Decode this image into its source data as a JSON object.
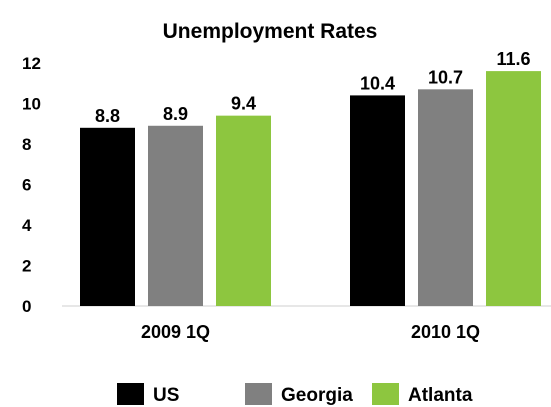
{
  "chart_data": {
    "type": "bar",
    "title": "Unemployment Rates",
    "categories": [
      "2009 1Q",
      "2010 1Q"
    ],
    "series": [
      {
        "name": "US",
        "values": [
          8.8,
          10.4
        ],
        "color": "#000000"
      },
      {
        "name": "Georgia",
        "values": [
          8.9,
          10.7
        ],
        "color": "#808080"
      },
      {
        "name": "Atlanta",
        "values": [
          9.4,
          11.6
        ],
        "color": "#8dc63f"
      }
    ],
    "data_labels": [
      [
        "8.8",
        "10.4"
      ],
      [
        "8.9",
        "10.7"
      ],
      [
        "9.4",
        "11.6"
      ]
    ],
    "yticks": [
      "0",
      "2",
      "4",
      "6",
      "8",
      "10",
      "12"
    ],
    "ylim": [
      0,
      12
    ],
    "grid": false,
    "legend_position": "bottom"
  }
}
